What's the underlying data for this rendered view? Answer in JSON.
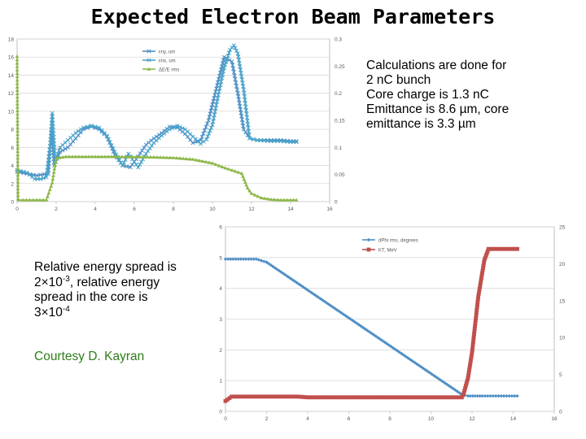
{
  "title": "Expected Electron Beam Parameters",
  "notes": [
    "Calculations are done for",
    "2 nC bunch",
    "Core charge is 1.3 nC",
    "Emittance is 8.6 µm, core",
    "emittance is 3.3 µm"
  ],
  "energy_spread": {
    "line1": "Relative energy spread is",
    "line2_pre": "2×10",
    "line2_exp": "-3",
    "line2_post": ", relative energy",
    "line3": "spread in the core is",
    "line4_pre": "3×10",
    "line4_exp": "-4"
  },
  "courtesy": "Courtesy D. Kayran",
  "colors": {
    "blue": "#4f8fc6",
    "cyan": "#4aa3c9",
    "green": "#8db84a",
    "red": "#c0504d",
    "courtesy": "#2e7d1a"
  },
  "chart_data": [
    {
      "type": "line",
      "title": "",
      "xlabel": "",
      "ylabel": "",
      "y2label": "",
      "xlim": [
        0,
        16
      ],
      "ylim": [
        0,
        18
      ],
      "y2lim": [
        0,
        0.3
      ],
      "x_ticks": [
        "0",
        "2",
        "4",
        "6",
        "8",
        "10",
        "12",
        "14",
        "16"
      ],
      "y_ticks": [
        "0",
        "2",
        "4",
        "6",
        "8",
        "10",
        "12",
        "14",
        "16",
        "18"
      ],
      "y2_ticks": [
        "0",
        "0.05",
        "0.1",
        "0.15",
        "0.2",
        "0.25",
        "0.3"
      ],
      "legend_position": "top-center",
      "series": [
        {
          "name": "εny, um",
          "axis": "left",
          "color": "#4f8fc6",
          "x": [
            0,
            1.0,
            1.6,
            1.75,
            1.9,
            2.2,
            2.6,
            3.0,
            3.4,
            3.8,
            4.2,
            4.6,
            5.0,
            5.4,
            5.8,
            6.2,
            6.6,
            7.0,
            7.4,
            7.8,
            8.2,
            8.6,
            9.0,
            9.4,
            9.8,
            10.2,
            10.6,
            11.0,
            11.3,
            11.6,
            11.9,
            12.3,
            13.0,
            13.5,
            14.0,
            14.3
          ],
          "y": [
            3.3,
            2.9,
            3.1,
            8.0,
            4.0,
            5.5,
            6.0,
            7.0,
            8.0,
            8.3,
            8.0,
            7.2,
            5.2,
            4.0,
            3.8,
            5.0,
            6.3,
            7.0,
            7.6,
            8.3,
            8.2,
            7.5,
            6.5,
            6.8,
            9.0,
            12.5,
            16.0,
            15.5,
            12.0,
            8.0,
            7.0,
            6.8,
            6.8,
            6.8,
            6.7,
            6.7
          ]
        },
        {
          "name": "εnx, um",
          "axis": "left",
          "color": "#4aa3c9",
          "x": [
            0,
            0.5,
            0.9,
            1.2,
            1.5,
            1.7,
            1.8,
            1.95,
            2.2,
            2.6,
            3.0,
            3.4,
            3.8,
            4.2,
            4.6,
            5.0,
            5.4,
            5.7,
            6.0,
            6.2,
            6.6,
            7.0,
            7.4,
            7.8,
            8.2,
            8.6,
            9.0,
            9.4,
            9.7,
            10.0,
            10.3,
            10.6,
            10.9,
            11.1,
            11.3,
            11.6,
            11.9,
            12.3,
            13.0,
            13.5,
            14.0,
            14.3
          ],
          "y": [
            3.5,
            3.2,
            2.5,
            2.5,
            2.7,
            6.5,
            9.8,
            4.5,
            6.0,
            6.8,
            7.6,
            8.2,
            8.4,
            8.2,
            7.3,
            5.5,
            4.0,
            5.3,
            4.4,
            3.8,
            5.3,
            6.5,
            7.3,
            8.0,
            8.4,
            8.0,
            7.2,
            6.4,
            6.9,
            8.5,
            11.8,
            14.8,
            16.8,
            17.3,
            16.4,
            12.4,
            7.0,
            6.8,
            6.7,
            6.7,
            6.6,
            6.6
          ]
        },
        {
          "name": "ΔE/E rms",
          "axis": "right",
          "color": "#8db84a",
          "x": [
            0,
            0.05,
            0.1,
            0.3,
            1.0,
            1.5,
            1.8,
            2.0,
            2.5,
            3.5,
            5.0,
            7.0,
            8.0,
            9.0,
            10.0,
            10.5,
            11.0,
            11.5,
            11.8,
            12.0,
            12.5,
            13.0,
            13.5,
            14.3
          ],
          "y": [
            0.268,
            0.005,
            0.003,
            0.003,
            0.003,
            0.003,
            0.035,
            0.08,
            0.083,
            0.083,
            0.083,
            0.082,
            0.081,
            0.078,
            0.071,
            0.064,
            0.058,
            0.052,
            0.025,
            0.015,
            0.007,
            0.004,
            0.003,
            0.003
          ]
        }
      ]
    },
    {
      "type": "line",
      "title": "",
      "xlabel": "",
      "ylabel": "",
      "y2label": "",
      "xlim": [
        0,
        16
      ],
      "ylim": [
        0,
        6
      ],
      "y2lim": [
        0,
        25
      ],
      "x_ticks": [
        "0",
        "2",
        "4",
        "6",
        "8",
        "10",
        "12",
        "14",
        "16"
      ],
      "y_ticks": [
        "0",
        "1",
        "2",
        "3",
        "4",
        "5",
        "6"
      ],
      "y2_ticks": [
        "0",
        "5",
        "10",
        "15",
        "20",
        "25"
      ],
      "legend_position": "top-center",
      "series": [
        {
          "name": "dPhi rms, degrees",
          "axis": "left",
          "color": "#4f8fc6",
          "x": [
            0,
            1.5,
            2.0,
            11.5,
            11.8,
            12.5,
            14.2
          ],
          "y": [
            4.95,
            4.95,
            4.85,
            0.55,
            0.5,
            0.5,
            0.5
          ]
        },
        {
          "name": "KT, MeV",
          "axis": "right",
          "color": "#c0504d",
          "x": [
            0,
            0.3,
            3.5,
            4.0,
            11.5,
            11.6,
            11.8,
            12.0,
            12.3,
            12.6,
            12.8,
            13.0,
            14.2
          ],
          "y": [
            1.4,
            2.0,
            2.0,
            1.9,
            1.9,
            2.5,
            4.5,
            8.0,
            15.5,
            20.5,
            22.0,
            22.0,
            22.0
          ]
        }
      ]
    }
  ]
}
